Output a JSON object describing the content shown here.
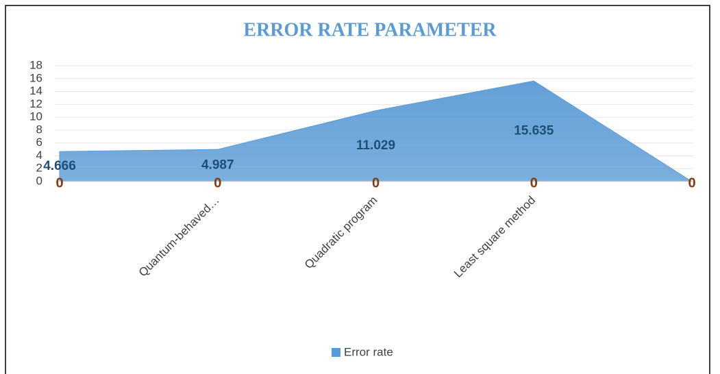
{
  "chart_data": {
    "type": "area",
    "title": "ERROR RATE PARAMETER",
    "categories": [
      null,
      "Quantum-behaved…",
      "Quadratic program",
      "Least square method",
      null
    ],
    "series": [
      {
        "name": "Error rate",
        "color": "#5b9bd5",
        "values": [
          4.666,
          4.987,
          11.029,
          15.635,
          0
        ]
      },
      {
        "color": "#843c0c",
        "values": [
          0,
          0,
          0,
          0,
          0
        ]
      }
    ],
    "ylim": [
      0,
      18
    ],
    "yticks": [
      0,
      2,
      4,
      6,
      8,
      10,
      12,
      14,
      16,
      18
    ],
    "grid": true,
    "legend": "bottom"
  }
}
